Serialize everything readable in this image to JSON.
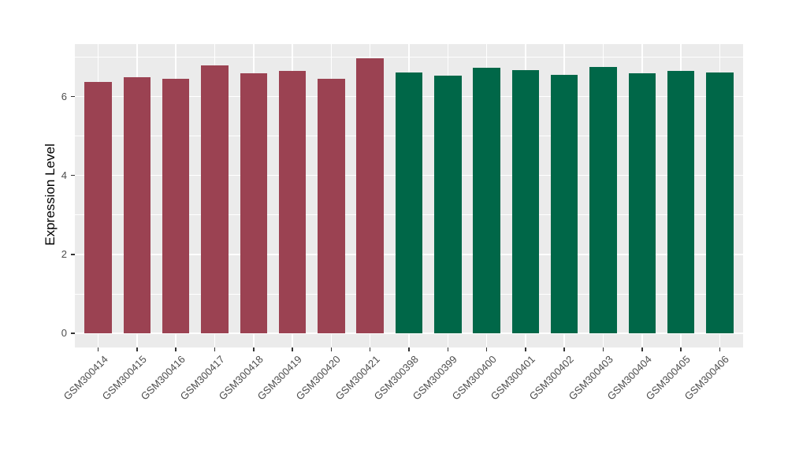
{
  "chart_data": {
    "type": "bar",
    "ylabel": "Expression Level",
    "yticks": [
      0,
      2,
      4,
      6
    ],
    "minor_ticks": [
      1,
      3,
      5,
      7
    ],
    "ylim": [
      -0.36,
      7.33
    ],
    "grid": true,
    "legend": "none",
    "colors": {
      "panel_bg": "#EBEBEB",
      "grid": "#FFFFFF",
      "tick_label": "#4D4D4D",
      "axis_title": "#000000",
      "tick_mark": "#333333",
      "group_left": "#9B4252",
      "group_right": "#006748"
    },
    "bars": [
      {
        "label": "GSM300414",
        "value": 6.38,
        "color": "#9B4252"
      },
      {
        "label": "GSM300415",
        "value": 6.49,
        "color": "#9B4252"
      },
      {
        "label": "GSM300416",
        "value": 6.45,
        "color": "#9B4252"
      },
      {
        "label": "GSM300417",
        "value": 6.8,
        "color": "#9B4252"
      },
      {
        "label": "GSM300418",
        "value": 6.6,
        "color": "#9B4252"
      },
      {
        "label": "GSM300419",
        "value": 6.66,
        "color": "#9B4252"
      },
      {
        "label": "GSM300420",
        "value": 6.45,
        "color": "#9B4252"
      },
      {
        "label": "GSM300421",
        "value": 6.97,
        "color": "#9B4252"
      },
      {
        "label": "GSM300398",
        "value": 6.61,
        "color": "#006748"
      },
      {
        "label": "GSM300399",
        "value": 6.54,
        "color": "#006748"
      },
      {
        "label": "GSM300400",
        "value": 6.73,
        "color": "#006748"
      },
      {
        "label": "GSM300401",
        "value": 6.68,
        "color": "#006748"
      },
      {
        "label": "GSM300402",
        "value": 6.56,
        "color": "#006748"
      },
      {
        "label": "GSM300403",
        "value": 6.75,
        "color": "#006748"
      },
      {
        "label": "GSM300404",
        "value": 6.6,
        "color": "#006748"
      },
      {
        "label": "GSM300405",
        "value": 6.66,
        "color": "#006748"
      },
      {
        "label": "GSM300406",
        "value": 6.61,
        "color": "#006748"
      }
    ]
  }
}
